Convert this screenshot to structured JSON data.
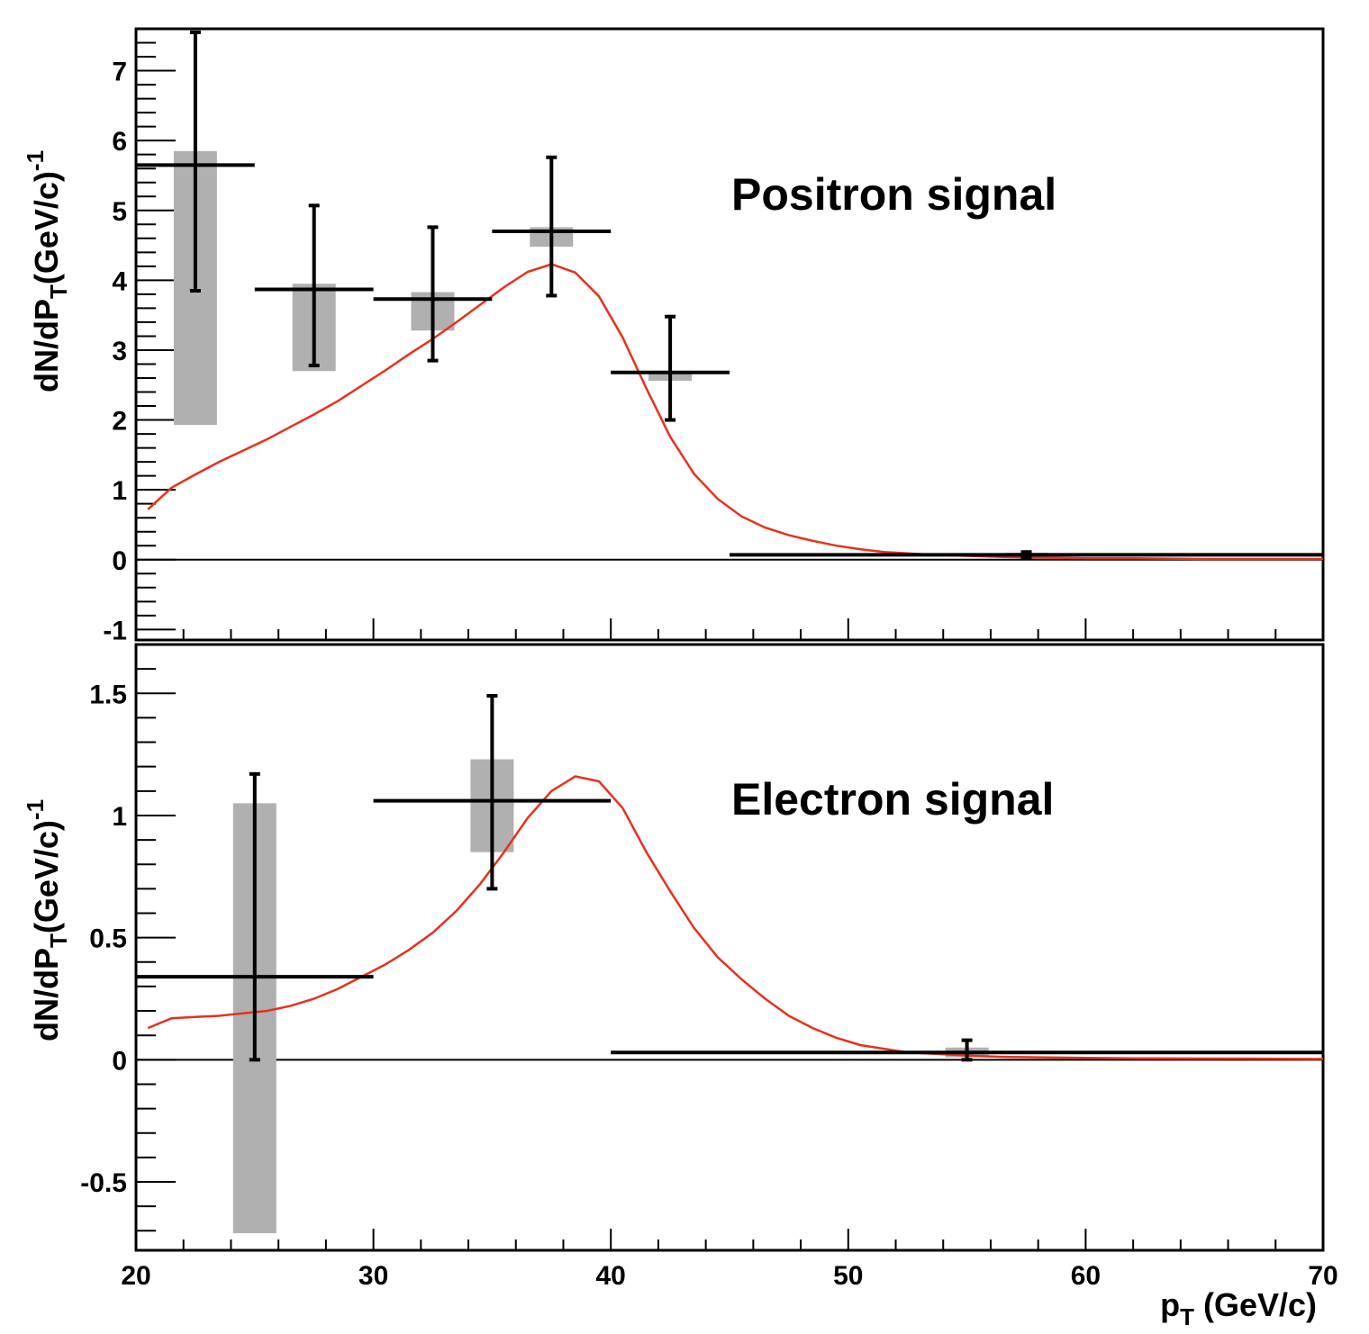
{
  "colors": {
    "model": "#e8301e",
    "data": "#000000",
    "syst_band": "#b0b0b0",
    "background": "#ffffff"
  },
  "chart_data": [
    {
      "type": "scatter",
      "panel": "top",
      "label": "Positron signal",
      "ylabel": "dN/dP",
      "ylabel_sub": "T",
      "ylabel_tail": "(GeV/c)",
      "ylabel_sup": "-1",
      "xlim": [
        20,
        70
      ],
      "ylim": [
        -1.15,
        7.6
      ],
      "yticks": [
        {
          "value": -1,
          "label": "-1"
        },
        {
          "value": 0,
          "label": "0"
        },
        {
          "value": 1,
          "label": "1"
        },
        {
          "value": 2,
          "label": "2"
        },
        {
          "value": 3,
          "label": "3"
        },
        {
          "value": 4,
          "label": "4"
        },
        {
          "value": 5,
          "label": "5"
        },
        {
          "value": 6,
          "label": "6"
        },
        {
          "value": 7,
          "label": "7"
        }
      ],
      "minor_step": 0.2,
      "points": [
        {
          "x": 22.5,
          "xlo": 20,
          "xhi": 25,
          "y": 5.65,
          "ylo": 3.85,
          "yhi": 7.55,
          "sys_lo": 1.93,
          "sys_hi": 5.85
        },
        {
          "x": 27.5,
          "xlo": 25,
          "xhi": 30,
          "y": 3.87,
          "ylo": 2.78,
          "yhi": 5.07,
          "sys_lo": 2.7,
          "sys_hi": 3.95
        },
        {
          "x": 32.5,
          "xlo": 30,
          "xhi": 35,
          "y": 3.73,
          "ylo": 2.85,
          "yhi": 4.76,
          "sys_lo": 3.28,
          "sys_hi": 3.83
        },
        {
          "x": 37.5,
          "xlo": 35,
          "xhi": 40,
          "y": 4.7,
          "ylo": 3.78,
          "yhi": 5.76,
          "sys_lo": 4.48,
          "sys_hi": 4.76
        },
        {
          "x": 42.5,
          "xlo": 40,
          "xhi": 45,
          "y": 2.68,
          "ylo": 2.0,
          "yhi": 3.48,
          "sys_lo": 2.56,
          "sys_hi": 2.7
        },
        {
          "x": 57.5,
          "xlo": 45,
          "xhi": 70,
          "y": 0.07,
          "ylo": 0.03,
          "yhi": 0.11,
          "sys_lo": 0.04,
          "sys_hi": 0.1
        }
      ],
      "model_curve": {
        "x": [
          20.5,
          21.5,
          22.5,
          23.5,
          24.5,
          25.5,
          26.5,
          27.5,
          28.5,
          29.5,
          30.5,
          31.5,
          32.5,
          33.5,
          34.5,
          35.5,
          36.5,
          37.5,
          38.5,
          39.5,
          40.5,
          41.5,
          42.5,
          43.5,
          44.5,
          45.5,
          46.5,
          47.5,
          48.5,
          49.5,
          50.5,
          51.5,
          52.5,
          53.5,
          54.5,
          55.5,
          56.5,
          58,
          60,
          62,
          65,
          68,
          70
        ],
        "y": [
          0.72,
          1.03,
          1.22,
          1.4,
          1.56,
          1.72,
          1.9,
          2.08,
          2.27,
          2.49,
          2.71,
          2.94,
          3.16,
          3.4,
          3.65,
          3.9,
          4.12,
          4.23,
          4.11,
          3.77,
          3.18,
          2.45,
          1.76,
          1.23,
          0.87,
          0.62,
          0.46,
          0.35,
          0.27,
          0.2,
          0.15,
          0.11,
          0.09,
          0.07,
          0.06,
          0.05,
          0.04,
          0.03,
          0.02,
          0.02,
          0.01,
          0.01,
          0.01
        ]
      }
    },
    {
      "type": "scatter",
      "panel": "bottom",
      "label": "Electron signal",
      "ylabel": "dN/dP",
      "ylabel_sub": "T",
      "ylabel_tail": "(GeV/c)",
      "ylabel_sup": "-1",
      "xlabel": "p",
      "xlabel_sub": "T",
      "xlabel_tail": "(GeV/c)",
      "xlim": [
        20,
        70
      ],
      "ylim": [
        -0.78,
        1.7
      ],
      "xticks": [
        {
          "value": 20,
          "label": "20"
        },
        {
          "value": 30,
          "label": "30"
        },
        {
          "value": 40,
          "label": "40"
        },
        {
          "value": 50,
          "label": "50"
        },
        {
          "value": 60,
          "label": "60"
        },
        {
          "value": 70,
          "label": "70"
        }
      ],
      "yticks": [
        {
          "value": -0.5,
          "label": "-0.5"
        },
        {
          "value": 0,
          "label": "0"
        },
        {
          "value": 0.5,
          "label": "0.5"
        },
        {
          "value": 1,
          "label": "1"
        },
        {
          "value": 1.5,
          "label": "1.5"
        }
      ],
      "minor_step": 0.1,
      "points": [
        {
          "x": 25,
          "xlo": 20,
          "xhi": 30,
          "y": 0.34,
          "ylo": 0.0,
          "yhi": 1.17,
          "sys_lo": -0.71,
          "sys_hi": 1.05
        },
        {
          "x": 35,
          "xlo": 30,
          "xhi": 40,
          "y": 1.06,
          "ylo": 0.7,
          "yhi": 1.49,
          "sys_lo": 0.85,
          "sys_hi": 1.23
        },
        {
          "x": 55,
          "xlo": 40,
          "xhi": 70,
          "y": 0.03,
          "ylo": 0.0,
          "yhi": 0.08,
          "sys_lo": 0.01,
          "sys_hi": 0.05
        }
      ],
      "model_curve": {
        "x": [
          20.5,
          21.5,
          22.5,
          23.5,
          24.5,
          25.5,
          26.5,
          27.5,
          28.5,
          29.5,
          30.5,
          31.5,
          32.5,
          33.5,
          34.5,
          35.5,
          36.5,
          37.5,
          38.5,
          39.5,
          40.5,
          41.5,
          42.5,
          43.5,
          44.5,
          45.5,
          46.5,
          47.5,
          48.5,
          49.5,
          50.5,
          51.5,
          52.5,
          53.5,
          54.5,
          55.5,
          56.5,
          58,
          60,
          62,
          65,
          68,
          70
        ],
        "y": [
          0.13,
          0.17,
          0.175,
          0.18,
          0.19,
          0.2,
          0.22,
          0.25,
          0.29,
          0.34,
          0.39,
          0.45,
          0.52,
          0.61,
          0.72,
          0.85,
          0.99,
          1.1,
          1.16,
          1.14,
          1.03,
          0.85,
          0.69,
          0.54,
          0.42,
          0.33,
          0.25,
          0.18,
          0.13,
          0.09,
          0.06,
          0.045,
          0.03,
          0.025,
          0.02,
          0.015,
          0.012,
          0.01,
          0.008,
          0.006,
          0.005,
          0.004,
          0.003
        ]
      }
    }
  ]
}
